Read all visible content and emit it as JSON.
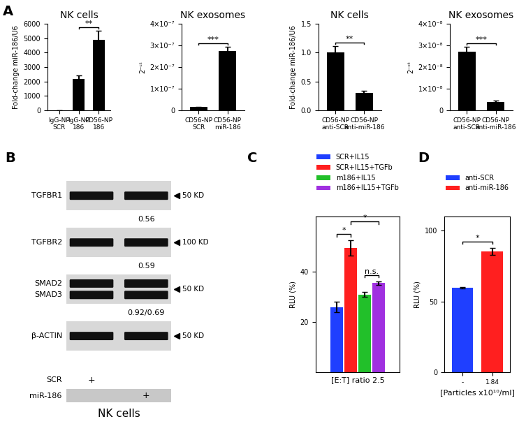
{
  "chart_data": [
    {
      "type": "bar",
      "panel": "A",
      "title": "NK cells",
      "y_label": "Fold-change miR-186/U6",
      "categories": [
        "IgG-NP SCR",
        "IgG-NP 186",
        "CD56-NP 186"
      ],
      "values": [
        1,
        2200,
        4900
      ],
      "errors": [
        0,
        200,
        600
      ],
      "color": "#000000",
      "ylim": [
        0,
        6000
      ],
      "yticks": [
        0,
        1000,
        2000,
        3000,
        4000,
        5000,
        6000
      ],
      "significance": [
        {
          "between": [
            1,
            2
          ],
          "label": "**"
        }
      ]
    },
    {
      "type": "bar",
      "title": "NK exosomes",
      "y_label": "2⁻ᶜᵗ",
      "categories": [
        "CD56-NP SCR",
        "CD56-NP miR-186"
      ],
      "values": [
        1.5e-08,
        2.75e-07
      ],
      "errors": [
        1e-09,
        2e-08
      ],
      "color": "#000000",
      "ylim": [
        0,
        4e-07
      ],
      "yticks": [
        0,
        {
          "value": 1e-07,
          "label": "1×10⁻⁷"
        },
        {
          "value": 2e-07,
          "label": "2×10⁻⁷"
        },
        {
          "value": 3e-07,
          "label": "3×10⁻⁷"
        },
        {
          "value": 4e-07,
          "label": "4×10⁻⁷"
        }
      ],
      "significance": [
        {
          "between": [
            0,
            1
          ],
          "label": "***"
        }
      ]
    },
    {
      "type": "bar",
      "title": "NK cells",
      "y_label": "Fold-change miR-186/U6",
      "categories": [
        "CD56-NP anti-SCR",
        "CD56-NP anti-miR-186"
      ],
      "values": [
        1.0,
        0.3
      ],
      "errors": [
        0.12,
        0.04
      ],
      "color": "#000000",
      "ylim": [
        0,
        1.5
      ],
      "yticks": [
        {
          "value": 0,
          "label": "0.0"
        },
        0.5,
        {
          "value": 1,
          "label": "1.0"
        },
        1.5
      ],
      "significance": [
        {
          "between": [
            0,
            1
          ],
          "label": "**"
        }
      ]
    },
    {
      "type": "bar",
      "title": "NK exosomes",
      "y_label": "2⁻ᶜᵗ",
      "categories": [
        "CD56-NP anti-SCR",
        "CD56-NP anti-miR-186"
      ],
      "values": [
        2.7e-08,
        4e-09
      ],
      "errors": [
        2.5e-09,
        5e-10
      ],
      "color": "#000000",
      "ylim": [
        0,
        4e-08
      ],
      "yticks": [
        0,
        {
          "value": 1e-08,
          "label": "1×10⁻⁸"
        },
        {
          "value": 2e-08,
          "label": "2×10⁻⁸"
        },
        {
          "value": 3e-08,
          "label": "3×10⁻⁸"
        },
        {
          "value": 4e-08,
          "label": "4×10⁻⁸"
        }
      ],
      "significance": [
        {
          "between": [
            0,
            1
          ],
          "label": "***"
        }
      ]
    },
    {
      "type": "blot",
      "panel": "B",
      "caption": "NK cells",
      "bands": [
        {
          "names": [
            "TGFBR1"
          ],
          "size_label": "50 KD",
          "ratio": "0.56"
        },
        {
          "names": [
            "TGFBR2"
          ],
          "size_label": "100 KD",
          "ratio": "0.59"
        },
        {
          "names": [
            "SMAD2",
            "SMAD3"
          ],
          "size_label": "50 KD",
          "ratio": "0.92/0.69"
        },
        {
          "names": [
            "β-ACTIN"
          ],
          "size_label": "50 KD"
        }
      ],
      "conditions": [
        {
          "name": "SCR",
          "lanes": [
            "+",
            null
          ]
        },
        {
          "name": "miR-186",
          "lanes": [
            null,
            "+"
          ]
        }
      ]
    },
    {
      "type": "bar",
      "panel": "C",
      "y_label": "RLU (%)",
      "x_label": "[E:T] ratio 2.5",
      "categories": [
        null
      ],
      "series": [
        {
          "name": "SCR+IL15",
          "color": "#1f3fff",
          "values": [
            26
          ],
          "errors": [
            2
          ]
        },
        {
          "name": "SCR+IL15+TGFb",
          "color": "#ff1f1f",
          "values": [
            49.5
          ],
          "errors": [
            3
          ]
        },
        {
          "name": "m186+IL15",
          "color": "#22c02a",
          "values": [
            31
          ],
          "errors": [
            1
          ]
        },
        {
          "name": "m186+IL15+TGFb",
          "color": "#a030e0",
          "values": [
            35.5
          ],
          "errors": [
            0.8
          ]
        }
      ],
      "ylim": [
        0,
        62
      ],
      "yticks": [
        20,
        40
      ],
      "legend": "above",
      "tick_labels": "y",
      "significance": [
        {
          "between": [
            2,
            3
          ],
          "label": "n.s."
        },
        {
          "between": [
            0,
            1
          ],
          "label": "*"
        },
        {
          "between": [
            1,
            3
          ],
          "label": "*"
        }
      ]
    },
    {
      "type": "bar",
      "panel": "D",
      "y_label": "RLU (%)",
      "x_label": "[Particles x10¹⁰/ml]",
      "categories": [
        "-",
        "1.84"
      ],
      "series": [
        {
          "name": "anti-SCR",
          "color": "#1f3fff",
          "values": [
            59.5,
            null
          ],
          "errors": [
            0.5,
            null
          ]
        },
        {
          "name": "anti-miR-186",
          "color": "#ff1f1f",
          "values": [
            null,
            85.5
          ],
          "errors": [
            null,
            2.5
          ]
        }
      ],
      "ylim": [
        0,
        110
      ],
      "yticks": [
        0,
        50,
        100
      ],
      "legend": "above",
      "significance": [
        {
          "between": [
            0,
            1
          ],
          "label": "*"
        }
      ]
    }
  ]
}
